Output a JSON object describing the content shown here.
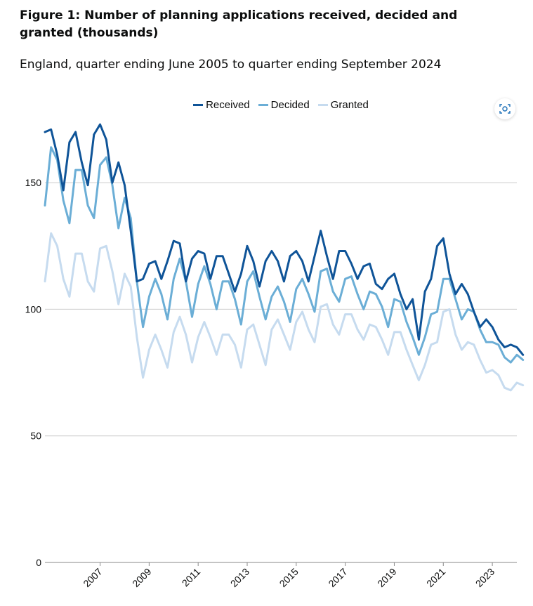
{
  "page": {
    "title": "Figure 1: Number of planning applications received, decided and granted (thousands)",
    "subtitle": "England, quarter ending June 2005 to quarter ending September 2024"
  },
  "colors": {
    "received": "#0f5498",
    "decided": "#6baed6",
    "granted": "#c6dbef",
    "grid": "#cccccc",
    "axis": "#888888"
  },
  "toolbar": {
    "icon": "screenshot-capture-icon"
  },
  "chart_data": {
    "type": "line",
    "title": "Figure 1: Number of planning applications received, decided and granted (thousands)",
    "subtitle": "England, quarter ending June 2005 to quarter ending September 2024",
    "xlabel": "",
    "ylabel": "",
    "x_start": "2005 Q2",
    "x_end": "2024 Q3",
    "ylim": [
      0,
      175
    ],
    "yticks": [
      "0",
      "50",
      "100",
      "150"
    ],
    "xticks": [
      "2007",
      "2009",
      "2011",
      "2013",
      "2015",
      "2017",
      "2019",
      "2021",
      "2023"
    ],
    "legend_position": "top-center",
    "grid": "horizontal",
    "series": [
      {
        "name": "Received",
        "values": [
          170,
          171,
          161,
          147,
          166,
          170,
          158,
          149,
          169,
          173,
          167,
          150,
          158,
          149,
          131,
          111,
          112,
          118,
          119,
          112,
          119,
          127,
          126,
          111,
          120,
          123,
          122,
          112,
          121,
          121,
          114,
          107,
          114,
          125,
          119,
          109,
          119,
          123,
          119,
          111,
          121,
          123,
          119,
          111,
          121,
          131,
          121,
          112,
          123,
          123,
          118,
          112,
          117,
          118,
          110,
          108,
          112,
          114,
          106,
          100,
          104,
          88,
          107,
          112,
          125,
          128,
          114,
          106,
          110,
          106,
          99,
          93,
          96,
          93,
          88,
          85,
          86,
          85,
          82
        ]
      },
      {
        "name": "Decided",
        "values": [
          141,
          164,
          159,
          143,
          134,
          155,
          155,
          141,
          136,
          157,
          160,
          149,
          132,
          144,
          136,
          111,
          93,
          105,
          112,
          106,
          96,
          112,
          120,
          111,
          97,
          110,
          117,
          110,
          100,
          111,
          111,
          104,
          94,
          111,
          115,
          105,
          96,
          105,
          109,
          103,
          95,
          108,
          112,
          106,
          99,
          115,
          116,
          107,
          103,
          112,
          113,
          106,
          100,
          107,
          106,
          101,
          93,
          104,
          103,
          95,
          89,
          82,
          89,
          98,
          99,
          112,
          112,
          104,
          96,
          100,
          99,
          92,
          87,
          87,
          86,
          81,
          79,
          82,
          80
        ]
      },
      {
        "name": "Granted",
        "values": [
          111,
          130,
          125,
          112,
          105,
          122,
          122,
          111,
          107,
          124,
          125,
          115,
          102,
          114,
          109,
          89,
          73,
          84,
          90,
          84,
          77,
          91,
          97,
          90,
          79,
          89,
          95,
          89,
          82,
          90,
          90,
          86,
          77,
          92,
          94,
          86,
          78,
          92,
          96,
          90,
          84,
          95,
          99,
          92,
          87,
          101,
          102,
          94,
          90,
          98,
          98,
          92,
          88,
          94,
          93,
          88,
          82,
          91,
          91,
          84,
          78,
          72,
          78,
          86,
          87,
          99,
          100,
          90,
          84,
          87,
          86,
          80,
          75,
          76,
          74,
          69,
          68,
          71,
          70
        ]
      }
    ]
  }
}
